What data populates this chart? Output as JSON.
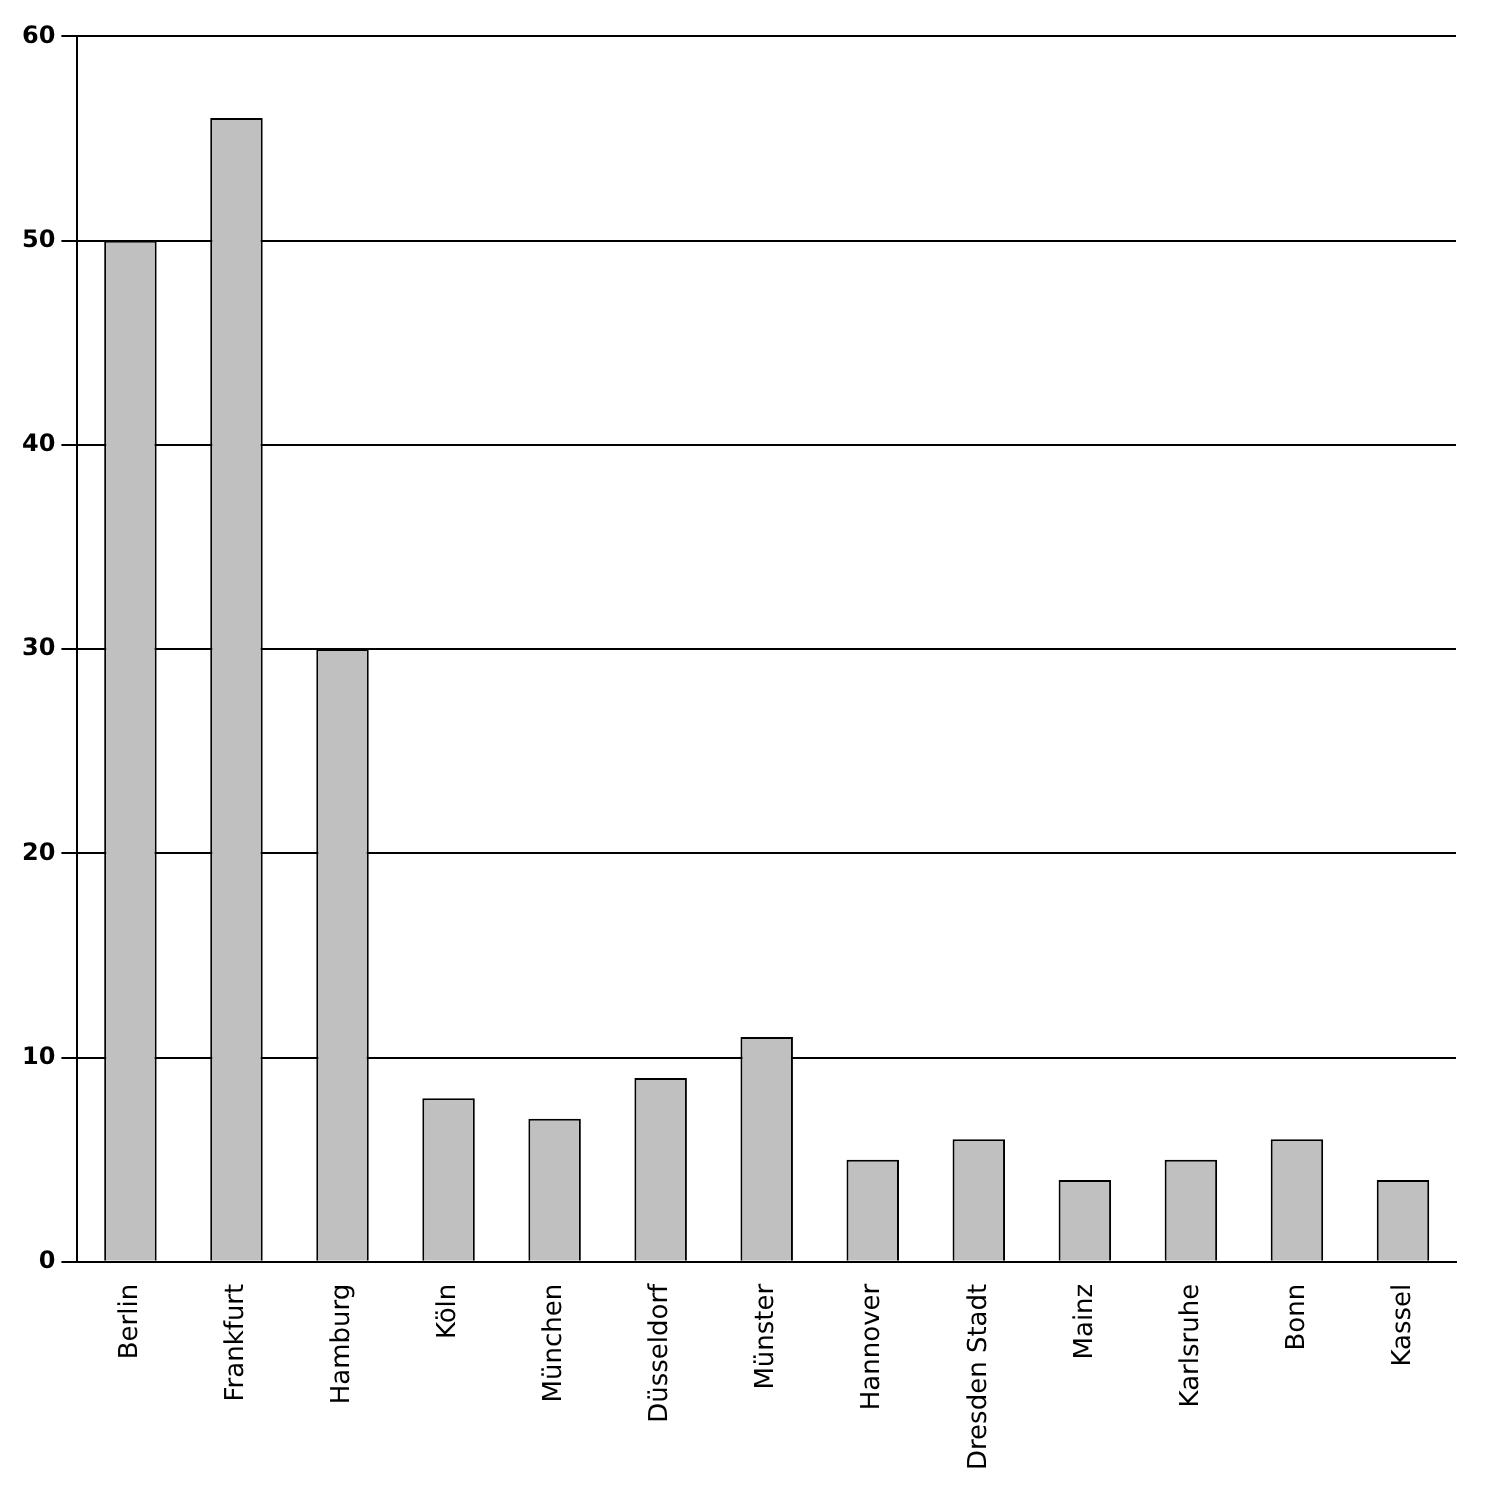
{
  "chart_data": {
    "type": "bar",
    "categories": [
      "Berlin",
      "Frankfurt",
      "Hamburg",
      "Köln",
      "München",
      "Düsseldorf",
      "Münster",
      "Hannover",
      "Dresden Stadt",
      "Mainz",
      "Karlsruhe",
      "Bonn",
      "Kassel"
    ],
    "values": [
      50,
      56,
      30,
      8,
      7,
      9,
      11,
      5,
      6,
      4,
      5,
      6,
      4
    ],
    "color": "#c0c0c0",
    "ylim": [
      0,
      60
    ],
    "yticks": [
      0,
      10,
      20,
      30,
      40,
      50,
      60
    ],
    "grid": "y"
  }
}
